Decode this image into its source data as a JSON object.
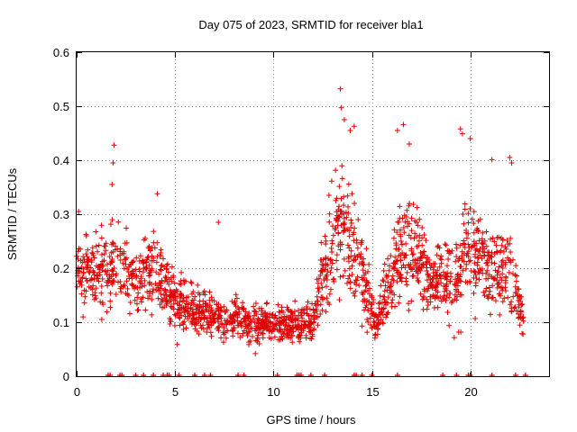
{
  "chart_data": {
    "type": "scatter",
    "title": "Day 075 of 2023, SRMTID for receiver bla1",
    "xlabel": "GPS time / hours",
    "ylabel": "SRMTID / TECUs",
    "xlim": [
      0,
      24
    ],
    "ylim": [
      0,
      0.6
    ],
    "xticks": [
      0,
      5,
      10,
      15,
      20
    ],
    "yticks": [
      0,
      0.1,
      0.2,
      0.3,
      0.4,
      0.5,
      0.6
    ],
    "xtick_labels": [
      "0",
      "5",
      "10",
      "15",
      "20"
    ],
    "ytick_labels": [
      "0",
      "0.1",
      "0.2",
      "0.3",
      "0.4",
      "0.5",
      "0.6"
    ],
    "grid": true,
    "marker": "+",
    "series": [
      {
        "name": "SRMTID",
        "color": "#e00000",
        "profile": [
          {
            "x": 0.0,
            "base": 0.2,
            "spread": 0.08
          },
          {
            "x": 1.0,
            "base": 0.19,
            "spread": 0.09
          },
          {
            "x": 2.0,
            "base": 0.2,
            "spread": 0.09
          },
          {
            "x": 3.0,
            "base": 0.18,
            "spread": 0.08
          },
          {
            "x": 4.0,
            "base": 0.19,
            "spread": 0.09
          },
          {
            "x": 5.0,
            "base": 0.14,
            "spread": 0.07
          },
          {
            "x": 6.0,
            "base": 0.12,
            "spread": 0.05
          },
          {
            "x": 7.0,
            "base": 0.11,
            "spread": 0.05
          },
          {
            "x": 8.0,
            "base": 0.1,
            "spread": 0.05
          },
          {
            "x": 9.0,
            "base": 0.1,
            "spread": 0.05
          },
          {
            "x": 10.0,
            "base": 0.09,
            "spread": 0.04
          },
          {
            "x": 11.0,
            "base": 0.1,
            "spread": 0.04
          },
          {
            "x": 12.0,
            "base": 0.1,
            "spread": 0.05
          },
          {
            "x": 12.8,
            "base": 0.22,
            "spread": 0.12
          },
          {
            "x": 13.5,
            "base": 0.28,
            "spread": 0.14
          },
          {
            "x": 14.5,
            "base": 0.2,
            "spread": 0.12
          },
          {
            "x": 15.2,
            "base": 0.09,
            "spread": 0.04
          },
          {
            "x": 16.0,
            "base": 0.18,
            "spread": 0.1
          },
          {
            "x": 17.0,
            "base": 0.26,
            "spread": 0.13
          },
          {
            "x": 18.0,
            "base": 0.17,
            "spread": 0.05
          },
          {
            "x": 19.0,
            "base": 0.18,
            "spread": 0.1
          },
          {
            "x": 20.0,
            "base": 0.23,
            "spread": 0.12
          },
          {
            "x": 21.0,
            "base": 0.2,
            "spread": 0.09
          },
          {
            "x": 22.0,
            "base": 0.19,
            "spread": 0.1
          },
          {
            "x": 22.7,
            "base": 0.1,
            "spread": 0.05
          }
        ],
        "peaks": [
          {
            "x": 0.1,
            "y": 0.305
          },
          {
            "x": 1.8,
            "y": 0.355
          },
          {
            "x": 1.85,
            "y": 0.395
          },
          {
            "x": 1.9,
            "y": 0.428
          },
          {
            "x": 4.1,
            "y": 0.338
          },
          {
            "x": 7.2,
            "y": 0.285
          },
          {
            "x": 13.4,
            "y": 0.532
          },
          {
            "x": 13.45,
            "y": 0.497
          },
          {
            "x": 13.6,
            "y": 0.475
          },
          {
            "x": 13.9,
            "y": 0.455
          },
          {
            "x": 14.1,
            "y": 0.463
          },
          {
            "x": 16.3,
            "y": 0.455
          },
          {
            "x": 16.6,
            "y": 0.466
          },
          {
            "x": 16.9,
            "y": 0.43
          },
          {
            "x": 19.5,
            "y": 0.458
          },
          {
            "x": 19.6,
            "y": 0.449
          },
          {
            "x": 20.0,
            "y": 0.44
          },
          {
            "x": 21.1,
            "y": 0.401
          },
          {
            "x": 22.0,
            "y": 0.405
          },
          {
            "x": 22.1,
            "y": 0.395
          }
        ],
        "zero_points": [
          1.6,
          1.7,
          2.2,
          2.3,
          3.0,
          3.4,
          3.9,
          4.4,
          4.6,
          4.7,
          5.2,
          6.0,
          6.5,
          6.8,
          8.2,
          8.5,
          10.2,
          11.2,
          11.3,
          11.4,
          11.9,
          12.6,
          14.1,
          14.2,
          14.5,
          15.0,
          16.3,
          18.6,
          19.3,
          19.9,
          20.0,
          21.1,
          22.3,
          22.8
        ]
      }
    ]
  }
}
